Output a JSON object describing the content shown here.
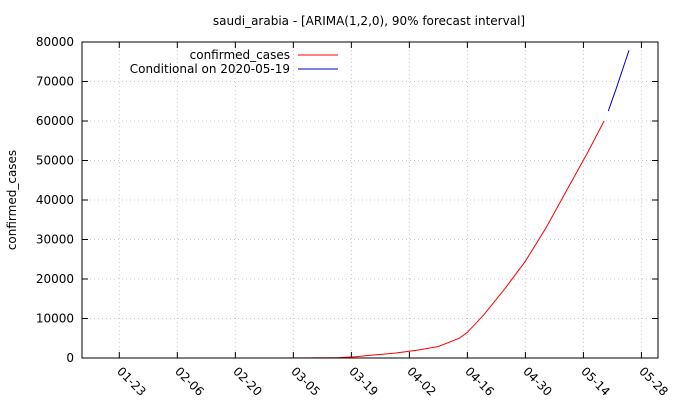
{
  "chart_data": {
    "type": "line",
    "title": "saudi_arabia -  [ARIMA(1,2,0), 90% forecast interval]",
    "xlabel": "",
    "ylabel": "confirmed_cases",
    "x_ticks": [
      "01-23",
      "02-06",
      "02-20",
      "03-05",
      "03-19",
      "04-02",
      "04-16",
      "04-30",
      "05-14",
      "05-28"
    ],
    "y_ticks": [
      0,
      10000,
      20000,
      30000,
      40000,
      50000,
      60000,
      70000,
      80000
    ],
    "xlim": [
      "2020-01-14",
      "2020-06-01"
    ],
    "ylim": [
      0,
      80000
    ],
    "grid": true,
    "legend_position": "top-left",
    "colors": {
      "actual": "#ff0000",
      "forecast": "#0000cc",
      "grid": "#c8c8c8",
      "axis": "#000000"
    },
    "series": [
      {
        "name": "confirmed_cases",
        "x": [
          "2020-03-02",
          "2020-03-09",
          "2020-03-16",
          "2020-03-20",
          "2020-03-25",
          "2020-03-30",
          "2020-04-04",
          "2020-04-09",
          "2020-04-14",
          "2020-04-16",
          "2020-04-20",
          "2020-04-25",
          "2020-04-30",
          "2020-05-05",
          "2020-05-10",
          "2020-05-15",
          "2020-05-19"
        ],
        "y": [
          0,
          15,
          100,
          300,
          800,
          1300,
          2000,
          2900,
          5000,
          6500,
          11000,
          17500,
          24500,
          33000,
          42500,
          52000,
          60000
        ]
      },
      {
        "name": "Conditional on 2020-05-19",
        "x": [
          "2020-05-20",
          "2020-05-21",
          "2020-05-22",
          "2020-05-23",
          "2020-05-24",
          "2020-05-25"
        ],
        "y": [
          62500,
          65500,
          68500,
          71600,
          74700,
          77900
        ]
      }
    ]
  }
}
